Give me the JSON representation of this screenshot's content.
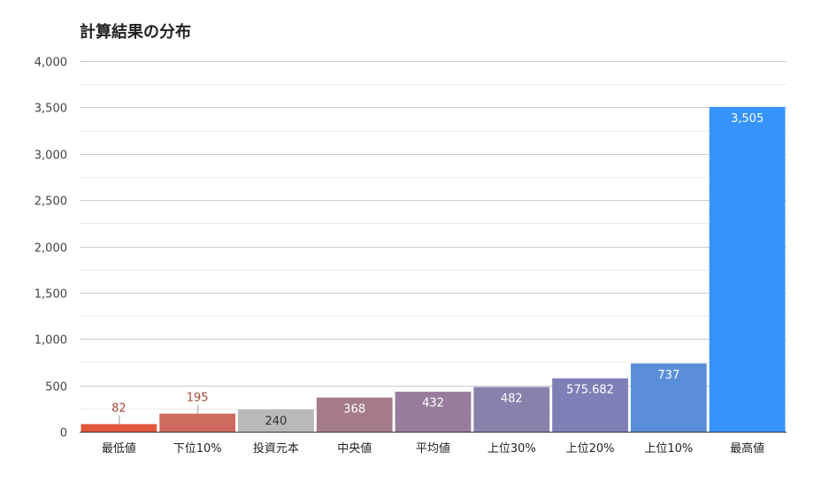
{
  "chart_data": {
    "type": "bar",
    "title": "計算結果の分布",
    "xlabel": "",
    "ylabel": "",
    "ylim": [
      0,
      4000
    ],
    "yticks": [
      0,
      500,
      1000,
      1500,
      2000,
      2500,
      3000,
      3500,
      4000
    ],
    "ytick_labels": [
      "0",
      "500",
      "1,000",
      "1,500",
      "2,000",
      "2,500",
      "3,000",
      "3,500",
      "4,000"
    ],
    "grid": true,
    "categories": [
      "最低値",
      "下位10%",
      "投資元本",
      "中央値",
      "平均値",
      "上位30%",
      "上位20%",
      "上位10%",
      "最高値"
    ],
    "values": [
      82,
      195,
      240,
      368,
      432,
      482,
      575.682,
      737,
      3505
    ],
    "value_labels": [
      "82",
      "195",
      "240",
      "368",
      "432",
      "482",
      "575.682",
      "737",
      "3,505"
    ],
    "bar_colors": [
      "#e2573b",
      "#cf6a5f",
      "#b9b9b9",
      "#a57b8b",
      "#977d9b",
      "#8782ac",
      "#7f7fb8",
      "#5b8ed9",
      "#3693fb"
    ],
    "label_colors": [
      "#a84a3a",
      "#a84a3a",
      "#333333",
      "#ffffff",
      "#ffffff",
      "#ffffff",
      "#ffffff",
      "#ffffff",
      "#ffffff"
    ],
    "label_inside": [
      false,
      false,
      true,
      true,
      true,
      true,
      true,
      true,
      true
    ]
  }
}
